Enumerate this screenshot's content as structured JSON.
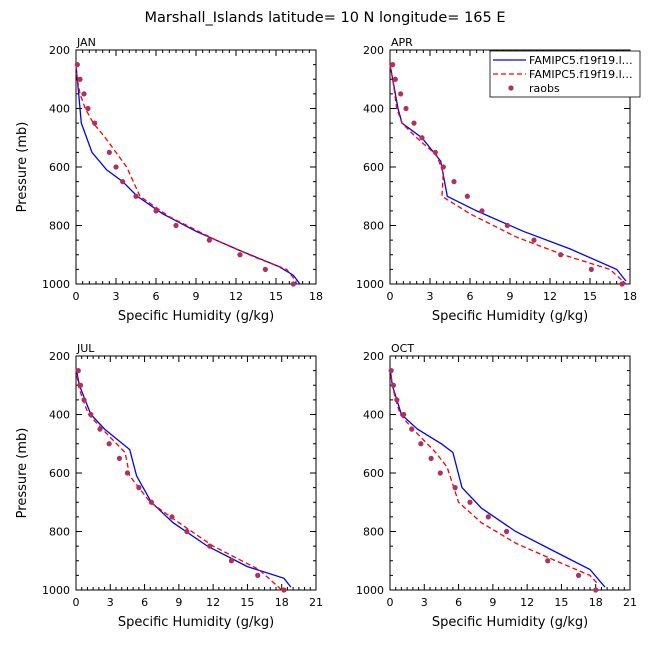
{
  "figure": {
    "title": "Marshall_Islands   latitude=  10 N longitude= 165 E",
    "xlabel": "Specific Humidity (g/kg)",
    "ylabel": "Pressure (mb)"
  },
  "legend": {
    "entries": [
      {
        "label": "FAMIPC5.f19f19.l…",
        "color": "#0000ff",
        "style": "solid"
      },
      {
        "label": "FAMIPC5.f19f19.l…",
        "color": "#ff0000",
        "style": "dashed"
      },
      {
        "label": "raobs",
        "color": "#b03060",
        "style": "marker"
      }
    ]
  },
  "colors": {
    "model1": "#0000ff",
    "model2": "#ff0000",
    "raobs": "#b03060"
  },
  "chart_data": [
    {
      "type": "line",
      "title": "JAN",
      "xlabel": "Specific Humidity (g/kg)",
      "ylabel": "Pressure (mb)",
      "xlim": [
        0,
        18
      ],
      "ylim": [
        1000,
        200
      ],
      "xticks": [
        "0",
        "3",
        "6",
        "9",
        "12",
        "15",
        "18"
      ],
      "yticks": [
        "200",
        "400",
        "600",
        "800",
        "1000"
      ],
      "series": [
        {
          "style": "solid",
          "x": [
            0.0,
            0.1,
            0.2,
            0.4,
            1.2,
            2.3,
            3.5,
            4.6,
            6.5,
            9.0,
            12.0,
            15.2,
            16.3,
            16.8
          ],
          "y": [
            250,
            300,
            350,
            450,
            550,
            610,
            650,
            700,
            760,
            820,
            880,
            940,
            970,
            1000
          ]
        },
        {
          "style": "dashed",
          "x": [
            0.0,
            0.1,
            0.3,
            0.7,
            1.3,
            2.2,
            3.0,
            3.8,
            4.8,
            7.0,
            10.5,
            13.5,
            15.8,
            16.5
          ],
          "y": [
            250,
            300,
            350,
            400,
            450,
            500,
            550,
            600,
            700,
            770,
            850,
            910,
            950,
            990
          ]
        },
        {
          "style": "markers",
          "x": [
            0.1,
            0.3,
            0.6,
            0.9,
            1.4,
            2.5,
            3.0,
            3.5,
            4.5,
            6.0,
            7.5,
            10.0,
            12.3,
            14.2,
            16.3
          ],
          "y": [
            250,
            300,
            350,
            400,
            450,
            550,
            600,
            650,
            700,
            750,
            800,
            850,
            900,
            950,
            1000
          ]
        }
      ]
    },
    {
      "type": "line",
      "title": "APR",
      "xlabel": "Specific Humidity (g/kg)",
      "ylabel": "Pressure (mb)",
      "xlim": [
        0,
        18
      ],
      "ylim": [
        1000,
        200
      ],
      "xticks": [
        "0",
        "3",
        "6",
        "9",
        "12",
        "15",
        "18"
      ],
      "yticks": [
        "200",
        "400",
        "600",
        "800",
        "1000"
      ],
      "series": [
        {
          "style": "solid",
          "x": [
            0.0,
            0.2,
            0.6,
            0.9,
            2.4,
            3.8,
            4.3,
            6.5,
            10.0,
            13.5,
            17.0,
            17.7
          ],
          "y": [
            250,
            300,
            400,
            450,
            500,
            580,
            700,
            750,
            820,
            880,
            950,
            990
          ]
        },
        {
          "style": "dashed",
          "x": [
            0.0,
            0.2,
            0.5,
            0.9,
            2.0,
            3.5,
            4.0,
            3.9,
            6.0,
            9.5,
            13.0,
            16.5,
            17.7
          ],
          "y": [
            250,
            300,
            400,
            450,
            500,
            560,
            620,
            700,
            760,
            840,
            900,
            950,
            1000
          ]
        },
        {
          "style": "markers",
          "x": [
            0.2,
            0.4,
            0.8,
            1.2,
            1.8,
            2.4,
            3.4,
            4.0,
            4.8,
            5.8,
            6.9,
            8.8,
            10.8,
            12.8,
            15.1,
            17.4
          ],
          "y": [
            250,
            300,
            350,
            400,
            450,
            500,
            550,
            600,
            650,
            700,
            750,
            800,
            850,
            900,
            950,
            1000
          ]
        }
      ]
    },
    {
      "type": "line",
      "title": "JUL",
      "xlabel": "Specific Humidity (g/kg)",
      "ylabel": "Pressure (mb)",
      "xlim": [
        0,
        21
      ],
      "ylim": [
        1000,
        200
      ],
      "xticks": [
        "0",
        "3",
        "6",
        "9",
        "12",
        "15",
        "18",
        "21"
      ],
      "yticks": [
        "200",
        "400",
        "600",
        "800",
        "1000"
      ],
      "series": [
        {
          "style": "solid",
          "x": [
            0.0,
            0.3,
            0.8,
            1.3,
            2.5,
            4.7,
            5.3,
            6.6,
            8.5,
            11.5,
            15.0,
            18.2,
            18.8
          ],
          "y": [
            240,
            300,
            350,
            400,
            450,
            520,
            610,
            700,
            770,
            850,
            920,
            960,
            990
          ]
        },
        {
          "style": "dashed",
          "x": [
            0.0,
            0.2,
            0.6,
            1.1,
            2.3,
            4.3,
            4.7,
            6.5,
            9.0,
            12.0,
            16.0,
            18.0
          ],
          "y": [
            240,
            300,
            350,
            400,
            450,
            530,
            610,
            700,
            770,
            850,
            930,
            1000
          ]
        },
        {
          "style": "markers",
          "x": [
            0.2,
            0.4,
            0.7,
            1.3,
            2.1,
            2.9,
            3.8,
            4.5,
            5.5,
            6.6,
            8.4,
            9.7,
            11.7,
            13.6,
            15.9,
            18.2
          ],
          "y": [
            250,
            300,
            350,
            400,
            450,
            500,
            550,
            600,
            650,
            700,
            750,
            800,
            850,
            900,
            950,
            1000
          ]
        }
      ]
    },
    {
      "type": "line",
      "title": "OCT",
      "xlabel": "Specific Humidity (g/kg)",
      "ylabel": "Pressure (mb)",
      "xlim": [
        0,
        21
      ],
      "ylim": [
        1000,
        200
      ],
      "xticks": [
        "0",
        "3",
        "6",
        "9",
        "12",
        "15",
        "18",
        "21"
      ],
      "yticks": [
        "200",
        "400",
        "600",
        "800",
        "1000"
      ],
      "series": [
        {
          "style": "solid",
          "x": [
            0.0,
            0.2,
            0.6,
            1.0,
            2.4,
            4.5,
            5.5,
            6.3,
            8.0,
            11.0,
            14.5,
            17.5,
            18.8
          ],
          "y": [
            240,
            300,
            350,
            400,
            450,
            500,
            530,
            650,
            720,
            800,
            870,
            930,
            990
          ]
        },
        {
          "style": "dashed",
          "x": [
            0.0,
            0.2,
            0.5,
            0.9,
            2.0,
            4.0,
            5.0,
            6.0,
            8.0,
            11.0,
            14.5,
            17.5,
            18.2
          ],
          "y": [
            240,
            300,
            350,
            400,
            450,
            530,
            580,
            700,
            770,
            840,
            900,
            950,
            980
          ]
        },
        {
          "style": "markers",
          "x": [
            0.1,
            0.3,
            0.6,
            1.2,
            1.9,
            2.7,
            3.6,
            4.4,
            5.7,
            7.0,
            8.6,
            10.2,
            13.8,
            16.5,
            18.0
          ],
          "y": [
            250,
            300,
            350,
            400,
            450,
            500,
            550,
            600,
            650,
            700,
            750,
            800,
            900,
            950,
            1000
          ]
        }
      ]
    }
  ]
}
